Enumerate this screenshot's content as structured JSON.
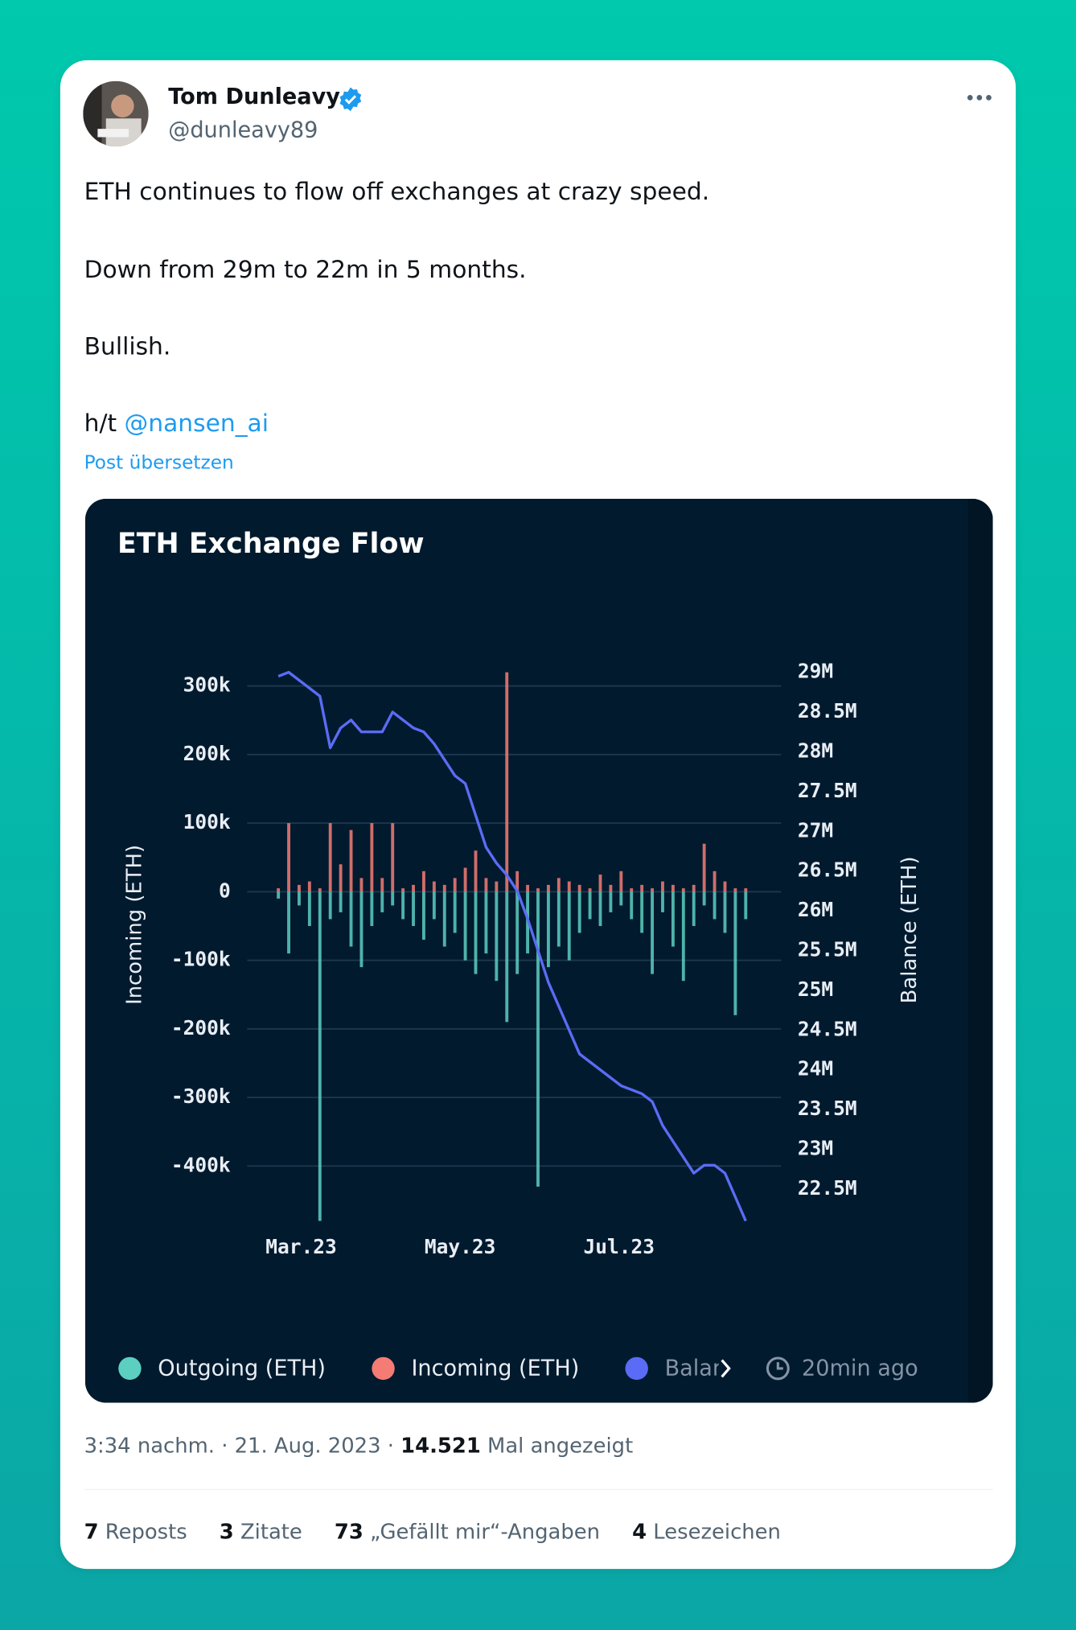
{
  "author": {
    "name": "Tom Dunleavy",
    "handle": "@dunleavy89"
  },
  "text": {
    "line1": "ETH continues to flow off exchanges at crazy speed.",
    "line2": "Down from 29m to 22m in 5 months.",
    "line3": "Bullish.",
    "line4": "h/t",
    "mention": "@nansen_ai"
  },
  "translate": "Post übersetzen",
  "chart_data": {
    "type": "bar",
    "title": "ETH Exchange Flow",
    "y_label": "Incoming (ETH)",
    "y2_label": "Balance (ETH)",
    "update_note": "20min ago",
    "categories": [
      null,
      null,
      null,
      null,
      null,
      null,
      null,
      null,
      null,
      null,
      null,
      null,
      null,
      null,
      null,
      null,
      null,
      null,
      null,
      null,
      null,
      null,
      null,
      null,
      null,
      null,
      null,
      null,
      null,
      null,
      null,
      null,
      null,
      null,
      null,
      null,
      null,
      null,
      null,
      null,
      null,
      null,
      null,
      null,
      null,
      null
    ],
    "xticks": [
      {
        "value": 2.2,
        "label": "Mar.23"
      },
      {
        "value": 17.5,
        "label": "May.23"
      },
      {
        "value": 32.8,
        "label": "Jul.23"
      }
    ],
    "ylim": [
      -480000,
      320000
    ],
    "yticks": [
      {
        "value": -400000,
        "label": "-400k"
      },
      {
        "value": -300000,
        "label": "-300k"
      },
      {
        "value": -200000,
        "label": "-200k"
      },
      {
        "value": -100000,
        "label": "-100k"
      },
      0,
      {
        "value": 100000,
        "label": "100k"
      },
      {
        "value": 200000,
        "label": "200k"
      },
      {
        "value": 300000,
        "label": "300k"
      }
    ],
    "y2lim": [
      22100000,
      29000000
    ],
    "y2ticks": [
      {
        "value": 22500000,
        "label": "22.5M"
      },
      {
        "value": 23000000,
        "label": "23M"
      },
      {
        "value": 23500000,
        "label": "23.5M"
      },
      {
        "value": 24000000,
        "label": "24M"
      },
      {
        "value": 24500000,
        "label": "24.5M"
      },
      {
        "value": 25000000,
        "label": "25M"
      },
      {
        "value": 25500000,
        "label": "25.5M"
      },
      {
        "value": 26000000,
        "label": "26M"
      },
      {
        "value": 26500000,
        "label": "26.5M"
      },
      {
        "value": 27000000,
        "label": "27M"
      },
      {
        "value": 27500000,
        "label": "27.5M"
      },
      {
        "value": 28000000,
        "label": "28M"
      },
      {
        "value": 28500000,
        "label": "28.5M"
      },
      {
        "value": 29000000,
        "label": "29M"
      }
    ],
    "grid": true,
    "series": [
      {
        "name": "Outgoing (ETH)",
        "color": "#5ccfc0",
        "values": [
          -10000,
          -90000,
          -20000,
          -50000,
          -480000,
          -40000,
          -30000,
          -80000,
          -110000,
          -50000,
          -30000,
          -20000,
          -40000,
          -50000,
          -70000,
          -40000,
          -80000,
          -60000,
          -100000,
          -120000,
          -90000,
          -130000,
          -190000,
          -120000,
          -90000,
          -430000,
          -110000,
          -80000,
          -100000,
          -60000,
          -40000,
          -50000,
          -30000,
          -20000,
          -40000,
          -60000,
          -120000,
          -30000,
          -80000,
          -130000,
          -50000,
          -20000,
          -40000,
          -60000,
          -180000,
          -40000
        ]
      },
      {
        "name": "Incoming (ETH)",
        "color": "#f47c74",
        "values": [
          5000,
          100000,
          10000,
          15000,
          5000,
          100000,
          40000,
          90000,
          20000,
          100000,
          20000,
          100000,
          5000,
          10000,
          30000,
          15000,
          10000,
          20000,
          35000,
          60000,
          20000,
          15000,
          320000,
          30000,
          10000,
          5000,
          10000,
          20000,
          15000,
          10000,
          5000,
          25000,
          10000,
          30000,
          5000,
          10000,
          5000,
          15000,
          10000,
          5000,
          10000,
          70000,
          30000,
          15000,
          5000,
          5000
        ]
      },
      {
        "name": "Balance (ETH)",
        "color": "#5a6cf5",
        "axis": "y2",
        "type": "line",
        "values": [
          28950000,
          29000000,
          28900000,
          28800000,
          28700000,
          28050000,
          28300000,
          28400000,
          28250000,
          28250000,
          28250000,
          28500000,
          28400000,
          28300000,
          28250000,
          28100000,
          27900000,
          27700000,
          27600000,
          27200000,
          26800000,
          26600000,
          26450000,
          26250000,
          25900000,
          25500000,
          25100000,
          24800000,
          24500000,
          24200000,
          24100000,
          24000000,
          23900000,
          23800000,
          23750000,
          23700000,
          23600000,
          23300000,
          23100000,
          22900000,
          22700000,
          22800000,
          22800000,
          22700000,
          22400000,
          22100000
        ]
      }
    ]
  },
  "meta": {
    "time": "3:34 nachm.",
    "sep": "·",
    "date": "21. Aug. 2023",
    "views": "14.521",
    "views_label": "Mal angezeigt"
  },
  "stats": [
    {
      "count": "7",
      "label": "Reposts"
    },
    {
      "count": "3",
      "label": "Zitate"
    },
    {
      "count": "73",
      "label": "„Gefällt mir“-Angaben"
    },
    {
      "count": "4",
      "label": "Lesezeichen"
    }
  ]
}
